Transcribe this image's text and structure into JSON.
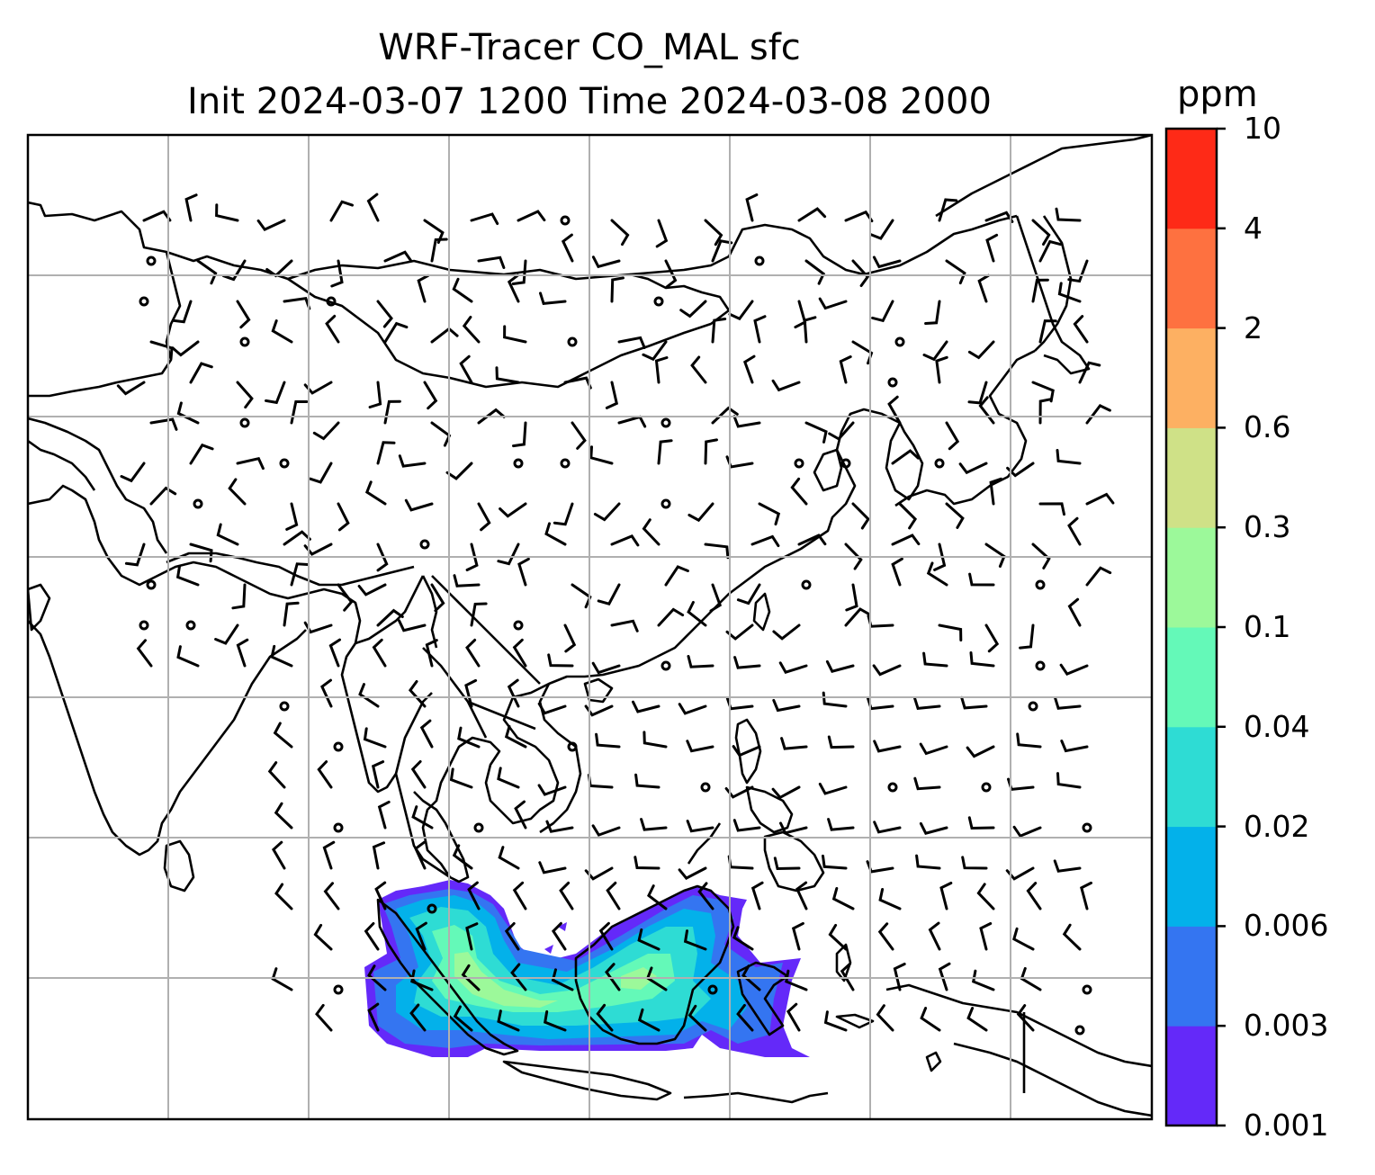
{
  "title": {
    "line1": "WRF-Tracer CO_MAL sfc",
    "line2": "Init 2024-03-07 1200 Time 2024-03-08 2000"
  },
  "colorbar": {
    "unit": "ppm",
    "levels": [
      "0.001",
      "0.003",
      "0.006",
      "0.02",
      "0.04",
      "0.1",
      "0.3",
      "0.6",
      "2",
      "4",
      "10"
    ],
    "colors": [
      "#6429f9",
      "#3475f1",
      "#03b1ea",
      "#2edcd4",
      "#64f9b8",
      "#9cf99a",
      "#cfe187",
      "#fdb062",
      "#fe7140",
      "#fe2a17"
    ]
  },
  "map": {
    "gridlines": true,
    "gridline_color": "#b0b0b0",
    "coastline_color": "#000000",
    "wind_barbs": true,
    "tracer_field_region": "Borneo and surrounding seas"
  }
}
